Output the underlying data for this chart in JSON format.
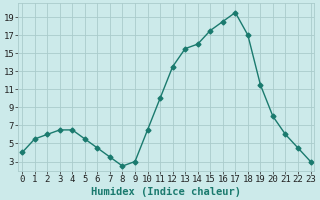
{
  "x": [
    0,
    1,
    2,
    3,
    4,
    5,
    6,
    7,
    8,
    9,
    10,
    11,
    12,
    13,
    14,
    15,
    16,
    17,
    18,
    19,
    20,
    21,
    22,
    23
  ],
  "y": [
    4,
    5.5,
    6,
    6.5,
    6.5,
    5.5,
    4.5,
    3.5,
    2.5,
    3,
    6.5,
    10,
    13.5,
    15.5,
    16,
    17.5,
    18.5,
    19.5,
    17,
    11.5,
    8,
    6,
    4.5,
    3
  ],
  "line_color": "#1a7a6e",
  "marker": "D",
  "markersize": 2.5,
  "linewidth": 1.0,
  "bg_color": "#cceaea",
  "grid_color": "#aacccc",
  "xlabel": "Humidex (Indice chaleur)",
  "ylim": [
    2.0,
    20.5
  ],
  "xlim": [
    -0.3,
    23.3
  ],
  "yticks": [
    3,
    5,
    7,
    9,
    11,
    13,
    15,
    17,
    19
  ],
  "xticks": [
    0,
    1,
    2,
    3,
    4,
    5,
    6,
    7,
    8,
    9,
    10,
    11,
    12,
    13,
    14,
    15,
    16,
    17,
    18,
    19,
    20,
    21,
    22,
    23
  ],
  "xlabel_fontsize": 7.5,
  "tick_fontsize": 6.5
}
